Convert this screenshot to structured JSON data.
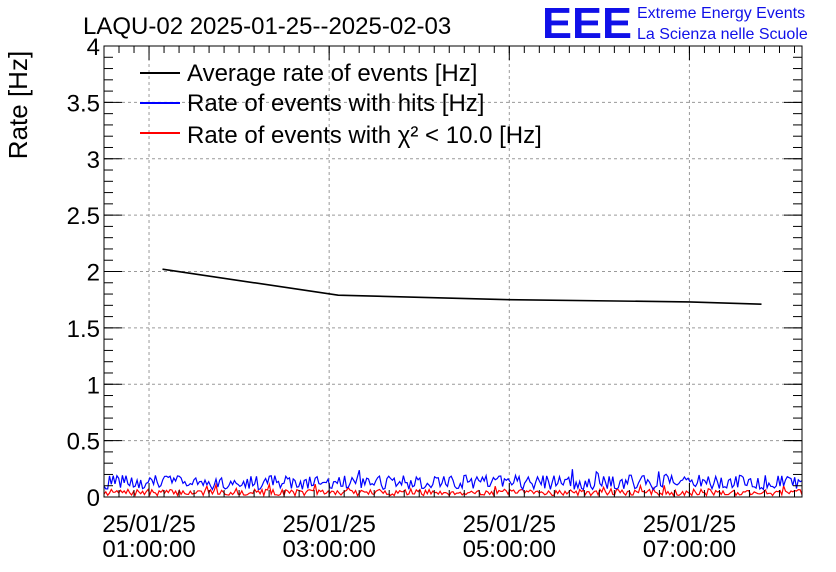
{
  "chart_data": {
    "type": "line",
    "title": "LAQU-02 2025-01-25--2025-02-03",
    "ylabel": "Rate [Hz]",
    "xlabel": "",
    "ylim": [
      0,
      4
    ],
    "yticks": [
      "0",
      "0.5",
      "1",
      "1.5",
      "2",
      "2.5",
      "3",
      "3.5",
      "4"
    ],
    "yticks_values": [
      0,
      0.5,
      1,
      1.5,
      2,
      2.5,
      3,
      3.5,
      4
    ],
    "xlim_hours": [
      0.5,
      8.25
    ],
    "xticks": [
      {
        "hour": 1,
        "date": "25/01/25",
        "time": "01:00:00"
      },
      {
        "hour": 3,
        "date": "25/01/25",
        "time": "03:00:00"
      },
      {
        "hour": 5,
        "date": "25/01/25",
        "time": "05:00:00"
      },
      {
        "hour": 7,
        "date": "25/01/25",
        "time": "07:00:00"
      }
    ],
    "grid": true,
    "legend_placement": "top-left",
    "series": [
      {
        "name": "Average rate of events [Hz]",
        "color": "#000000",
        "x_hours": [
          1.15,
          3.1,
          5.0,
          7.0,
          7.8
        ],
        "values": [
          2.02,
          1.79,
          1.75,
          1.73,
          1.71
        ]
      },
      {
        "name": "Rate of events with hits [Hz]",
        "color": "#0000ff",
        "mean": 0.13,
        "spread": 0.08
      },
      {
        "name": "Rate of events with χ² < 10.0 [Hz]",
        "color": "#ff0000",
        "mean": 0.04,
        "spread": 0.035
      }
    ]
  },
  "logo": {
    "mark": "EEE",
    "line1": "Extreme Energy Events",
    "line2": "La Scienza nelle Scuole"
  }
}
